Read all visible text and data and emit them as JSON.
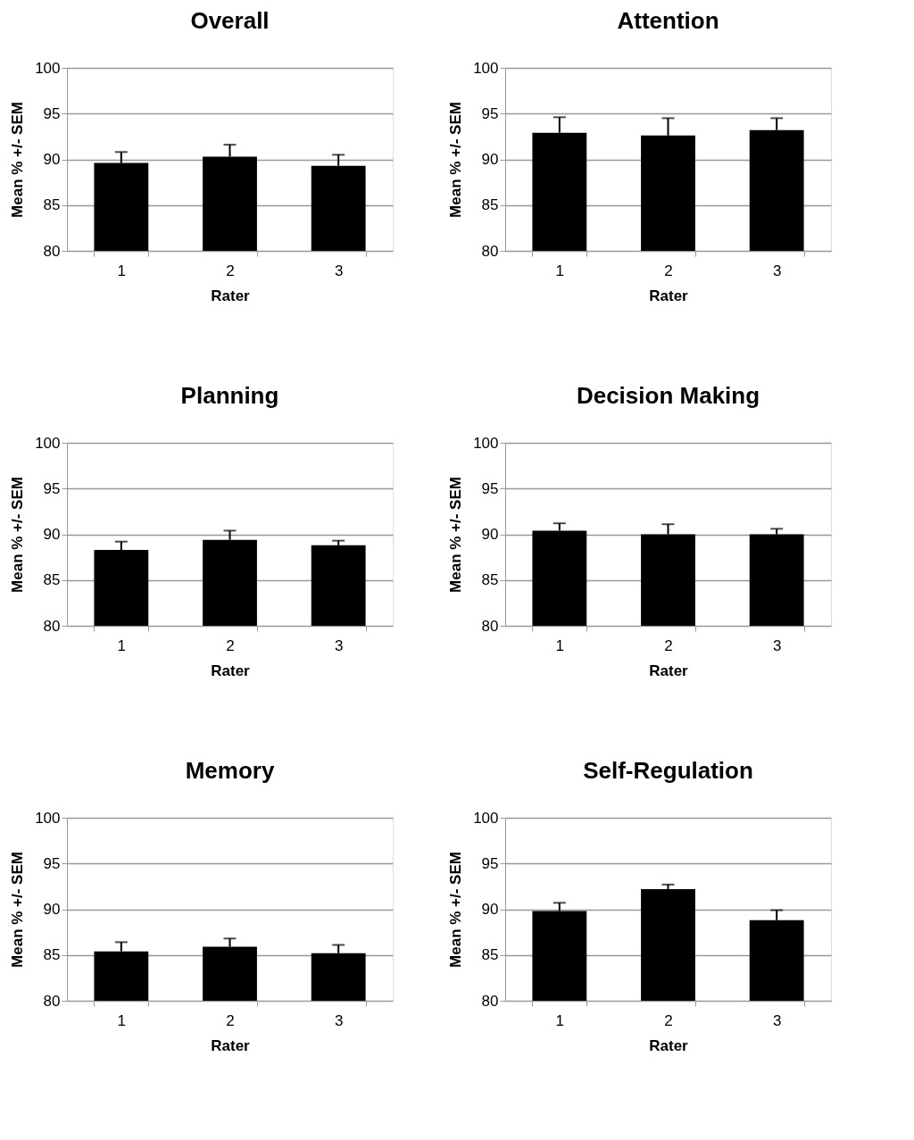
{
  "chart_data": [
    {
      "type": "bar",
      "title": "Overall",
      "xlabel": "Rater",
      "ylabel": "Mean % +/- SEM",
      "categories": [
        "1",
        "2",
        "3"
      ],
      "values": [
        89.6,
        90.3,
        89.3
      ],
      "errors": [
        [
          89.6,
          90.8
        ],
        [
          90.3,
          91.6
        ],
        [
          89.3,
          90.5
        ]
      ],
      "color": "#000000",
      "ylim": [
        80,
        100
      ],
      "yticks": [
        80,
        85,
        90,
        95,
        100
      ],
      "grid": "y"
    },
    {
      "type": "bar",
      "title": "Attention",
      "xlabel": "Rater",
      "ylabel": "Mean % +/- SEM",
      "categories": [
        "1",
        "2",
        "3"
      ],
      "values": [
        92.9,
        92.6,
        93.2
      ],
      "errors": [
        [
          92.9,
          94.6
        ],
        [
          92.6,
          94.5
        ],
        [
          93.2,
          94.5
        ]
      ],
      "color": "#000000",
      "ylim": [
        80,
        100
      ],
      "yticks": [
        80,
        85,
        90,
        95,
        100
      ],
      "grid": "y"
    },
    {
      "type": "bar",
      "title": "Planning",
      "xlabel": "Rater",
      "ylabel": "Mean % +/- SEM",
      "categories": [
        "1",
        "2",
        "3"
      ],
      "values": [
        88.3,
        89.4,
        88.8
      ],
      "errors": [
        [
          88.3,
          89.2
        ],
        [
          89.4,
          90.4
        ],
        [
          88.8,
          89.3
        ]
      ],
      "color": "#000000",
      "ylim": [
        80,
        100
      ],
      "yticks": [
        80,
        85,
        90,
        95,
        100
      ],
      "grid": "y"
    },
    {
      "type": "bar",
      "title": "Decision Making",
      "xlabel": "Rater",
      "ylabel": "Mean % +/- SEM",
      "categories": [
        "1",
        "2",
        "3"
      ],
      "values": [
        90.4,
        90.0,
        90.0
      ],
      "errors": [
        [
          90.4,
          91.2
        ],
        [
          90.0,
          91.1
        ],
        [
          90.0,
          90.6
        ]
      ],
      "color": "#000000",
      "ylim": [
        80,
        100
      ],
      "yticks": [
        80,
        85,
        90,
        95,
        100
      ],
      "grid": "y"
    },
    {
      "type": "bar",
      "title": "Memory",
      "xlabel": "Rater",
      "ylabel": "Mean % +/- SEM",
      "categories": [
        "1",
        "2",
        "3"
      ],
      "values": [
        85.4,
        85.9,
        85.2
      ],
      "errors": [
        [
          85.4,
          86.4
        ],
        [
          85.9,
          86.8
        ],
        [
          85.2,
          86.1
        ]
      ],
      "color": "#000000",
      "ylim": [
        80,
        100
      ],
      "yticks": [
        80,
        85,
        90,
        95,
        100
      ],
      "grid": "y"
    },
    {
      "type": "bar",
      "title": "Self-Regulation",
      "xlabel": "Rater",
      "ylabel": "Mean % +/- SEM",
      "categories": [
        "1",
        "2",
        "3"
      ],
      "values": [
        89.8,
        92.2,
        88.8
      ],
      "errors": [
        [
          89.8,
          90.7
        ],
        [
          92.2,
          92.7
        ],
        [
          88.8,
          89.9
        ]
      ],
      "color": "#000000",
      "ylim": [
        80,
        100
      ],
      "yticks": [
        80,
        85,
        90,
        95,
        100
      ],
      "grid": "y"
    }
  ]
}
